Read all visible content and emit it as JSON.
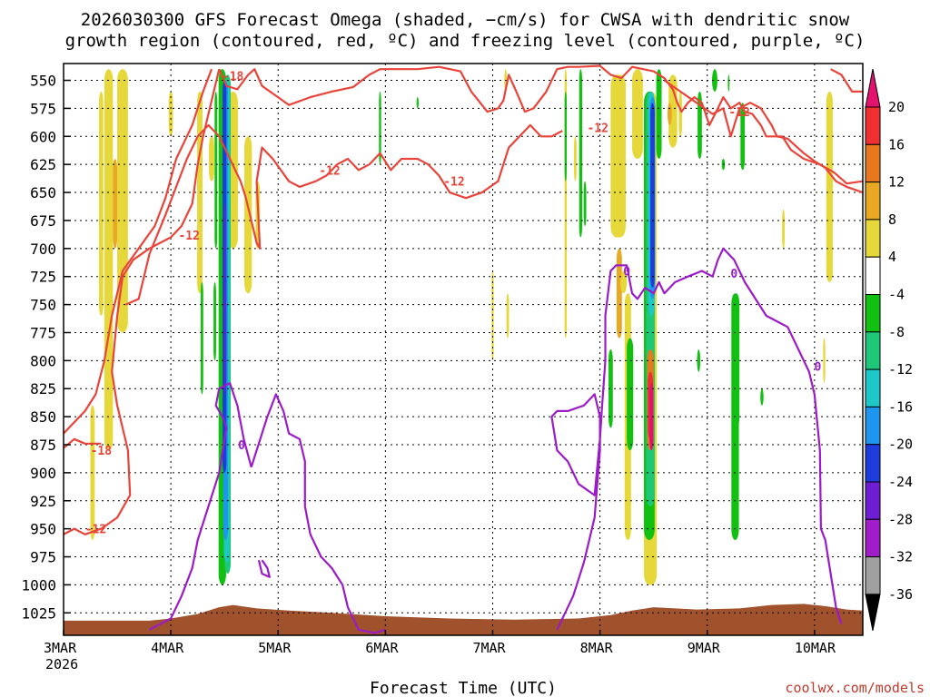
{
  "chart_data": {
    "type": "heatmap",
    "title_lines": [
      "2026030300 GFS Forecast Omega (shaded, −cm/s) for CWSA with dendritic snow",
      "growth region (contoured, red, ºC) and freezing level (contoured, purple, ºC)"
    ],
    "xlabel": "Forecast Time (UTC)",
    "credit": "coolwx.com/models",
    "x_ticks": [
      "3MAR",
      "4MAR",
      "5MAR",
      "6MAR",
      "7MAR",
      "8MAR",
      "9MAR",
      "10MAR"
    ],
    "x_tick_sub": "2026",
    "y_ticks": [
      "550",
      "575",
      "600",
      "625",
      "650",
      "675",
      "700",
      "725",
      "750",
      "775",
      "800",
      "825",
      "850",
      "875",
      "900",
      "925",
      "950",
      "975",
      "1000",
      "1025"
    ],
    "y_range_hpa": [
      535,
      1045
    ],
    "x_range_days": [
      0,
      7.45
    ],
    "grid": true,
    "colorbar": {
      "ticks": [
        "20",
        "16",
        "12",
        "8",
        "4",
        "-4",
        "-8",
        "-12",
        "-16",
        "-20",
        "-24",
        "-28",
        "-32",
        "-36"
      ],
      "colors": [
        "#e3126e",
        "#f03030",
        "#e8781e",
        "#e8a824",
        "#e6d83a",
        "#ffffff",
        "#12c012",
        "#1ec878",
        "#1ec8c8",
        "#1e96f0",
        "#1e3cdc",
        "#6e1ed2",
        "#a01ec8",
        "#a0a0a0",
        "#000000"
      ]
    },
    "dgz_labels": [
      "-18",
      "-12",
      "-12",
      "-12",
      "-12",
      "-12",
      "-18",
      "-12"
    ],
    "freezing_labels": [
      "0",
      "0",
      "0",
      "0"
    ],
    "colors": {
      "dgz": "#e8443a",
      "freezing": "#9b1bc8",
      "terrain": "#a0522d"
    }
  }
}
